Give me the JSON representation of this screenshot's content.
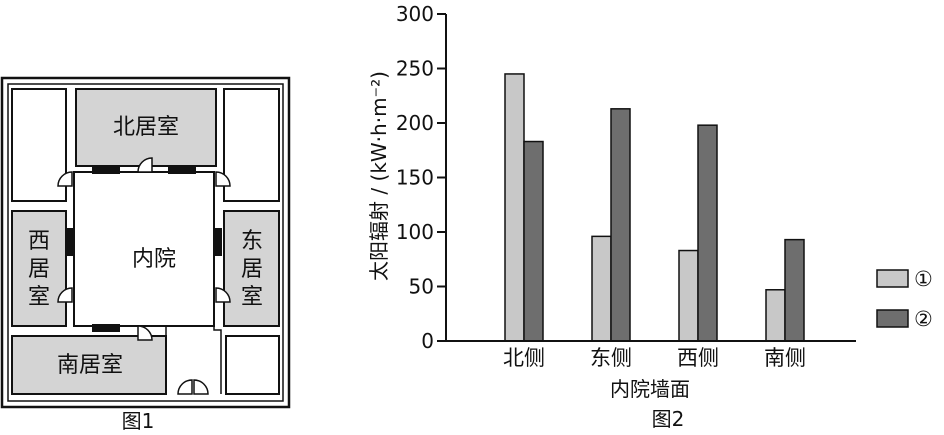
{
  "figure1": {
    "caption": "图1",
    "rooms": {
      "north": "北居室",
      "courtyard": "内院",
      "west": [
        "西",
        "居",
        "室"
      ],
      "east": [
        "东",
        "居",
        "室"
      ],
      "south": "南居室"
    }
  },
  "figure2": {
    "caption": "图2"
  },
  "chart_data": {
    "type": "bar",
    "categories": [
      "北侧",
      "东侧",
      "西侧",
      "南侧"
    ],
    "series": [
      {
        "name": "①",
        "values": [
          245,
          96,
          83,
          47
        ],
        "color": "#c8c8c8"
      },
      {
        "name": "②",
        "values": [
          183,
          213,
          198,
          93
        ],
        "color": "#6e6e6e"
      }
    ],
    "xlabel": "内院墙面",
    "ylabel": "太阳辐射 / (kW·h·m⁻²)",
    "ylim": [
      0,
      300
    ],
    "yticks": [
      0,
      50,
      100,
      150,
      200,
      250,
      300
    ],
    "grid": false,
    "legend_position": "right"
  }
}
